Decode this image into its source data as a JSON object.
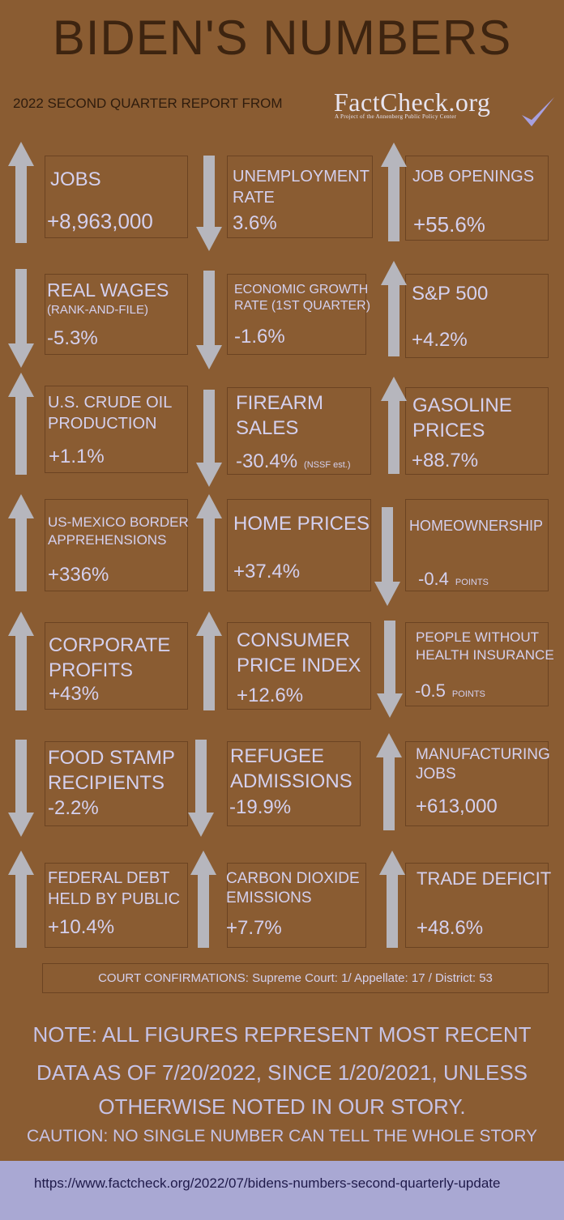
{
  "header": {
    "title": "BIDEN'S NUMBERS",
    "subtitle": "2022 SECOND QUARTER REPORT FROM",
    "logo_text": "FactCheck.org",
    "logo_tagline": "A Project of the Annenberg Public Policy Center",
    "logo_icon": "checkmark-icon"
  },
  "colors": {
    "background": "#8a5c32",
    "title": "#3d2410",
    "text": "#d4d0ee",
    "arrow": "#b6b6bd",
    "footer": "#a9a8d3"
  },
  "stats": [
    {
      "label": [
        "JOBS"
      ],
      "value": "+8,963,000",
      "direction": "up"
    },
    {
      "label": [
        "UNEMPLOYMENT",
        "RATE"
      ],
      "value": "3.6%",
      "direction": "down"
    },
    {
      "label": [
        "JOB OPENINGS"
      ],
      "value": "+55.6%",
      "direction": "up"
    },
    {
      "label": [
        "REAL WAGES",
        "(RANK-AND-FILE)"
      ],
      "value": "-5.3%",
      "direction": "down"
    },
    {
      "label": [
        "ECONOMIC GROWTH",
        "RATE (1ST QUARTER)"
      ],
      "value": "-1.6%",
      "direction": "down"
    },
    {
      "label": [
        "S&P 500"
      ],
      "value": "+4.2%",
      "direction": "up"
    },
    {
      "label": [
        "U.S. CRUDE OIL",
        "PRODUCTION"
      ],
      "value": "+1.1%",
      "direction": "up"
    },
    {
      "label": [
        "FIREARM",
        "SALES"
      ],
      "value": "-30.4%",
      "value_note": "(NSSF est.)",
      "direction": "down"
    },
    {
      "label": [
        "GASOLINE",
        "PRICES"
      ],
      "value": "+88.7%",
      "direction": "up"
    },
    {
      "label": [
        "US-MEXICO BORDER",
        "APPREHENSIONS"
      ],
      "value": "+336%",
      "direction": "up"
    },
    {
      "label": [
        "HOME PRICES"
      ],
      "value": "+37.4%",
      "direction": "up"
    },
    {
      "label": [
        "HOMEOWNERSHIP"
      ],
      "value": "-0.4",
      "value_note": "POINTS",
      "direction": "down"
    },
    {
      "label": [
        "CORPORATE",
        "PROFITS"
      ],
      "value": "+43%",
      "direction": "up"
    },
    {
      "label": [
        "CONSUMER",
        "PRICE INDEX"
      ],
      "value": "+12.6%",
      "direction": "up"
    },
    {
      "label": [
        "PEOPLE WITHOUT",
        "HEALTH INSURANCE"
      ],
      "value": "-0.5",
      "value_note": "POINTS",
      "direction": "down"
    },
    {
      "label": [
        "FOOD STAMP",
        "RECIPIENTS"
      ],
      "value": "-2.2%",
      "direction": "down"
    },
    {
      "label": [
        "REFUGEE",
        "ADMISSIONS"
      ],
      "value": "-19.9%",
      "direction": "down"
    },
    {
      "label": [
        "MANUFACTURING",
        "JOBS"
      ],
      "value": "+613,000",
      "direction": "up"
    },
    {
      "label": [
        "FEDERAL DEBT",
        "HELD BY PUBLIC"
      ],
      "value": "+10.4%",
      "direction": "up"
    },
    {
      "label": [
        "CARBON DIOXIDE",
        "EMISSIONS"
      ],
      "value": "+7.7%",
      "direction": "up"
    },
    {
      "label": [
        "TRADE DEFICIT"
      ],
      "value": "+48.6%",
      "direction": "up"
    }
  ],
  "court": "COURT CONFIRMATIONS:  Supreme Court: 1/ Appellate: 17 / District: 53",
  "note": {
    "line1": "NOTE:  ALL FIGURES REPRESENT MOST RECENT",
    "line2": "DATA AS OF 7/20/2022, SINCE 1/20/2021, UNLESS",
    "line3": "OTHERWISE NOTED IN OUR STORY.",
    "caution": "CAUTION: NO SINGLE NUMBER CAN TELL THE WHOLE STORY"
  },
  "footer": {
    "url": "https://www.factcheck.org/2022/07/bidens-numbers-second-quarterly-update"
  }
}
